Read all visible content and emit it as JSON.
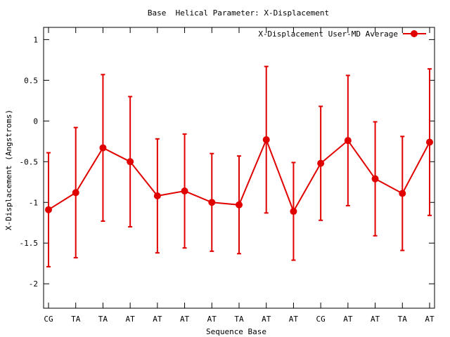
{
  "chart_data": {
    "type": "line",
    "title": "Base  Helical Parameter: X-Displacement",
    "xlabel": "Sequence Base",
    "ylabel": "X-Displacement (Angstroms)",
    "categories": [
      "CG",
      "TA",
      "TA",
      "AT",
      "AT",
      "AT",
      "AT",
      "TA",
      "AT",
      "AT",
      "CG",
      "AT",
      "AT",
      "TA",
      "AT"
    ],
    "ylim": [
      -2.3,
      1.15
    ],
    "yticks": [
      1,
      0.5,
      0,
      -0.5,
      -1,
      -1.5,
      -2
    ],
    "ytick_labels": [
      "1",
      "0.5",
      "0",
      "-0.5",
      "-1",
      "-1.5",
      "-2"
    ],
    "grid": false,
    "legend_position": "top-right",
    "series": [
      {
        "name": "X-Displacement User-MD Average",
        "color": "#e00000",
        "marker": "circle",
        "values": [
          -1.09,
          -0.88,
          -0.33,
          -0.5,
          -0.92,
          -0.86,
          -1.0,
          -1.03,
          -0.23,
          -1.11,
          -0.52,
          -0.24,
          -0.71,
          -0.89,
          -0.26
        ],
        "error": [
          0.7,
          0.8,
          0.9,
          0.8,
          0.7,
          0.7,
          0.6,
          0.6,
          0.9,
          0.6,
          0.7,
          0.8,
          0.7,
          0.7,
          0.9
        ]
      }
    ]
  }
}
